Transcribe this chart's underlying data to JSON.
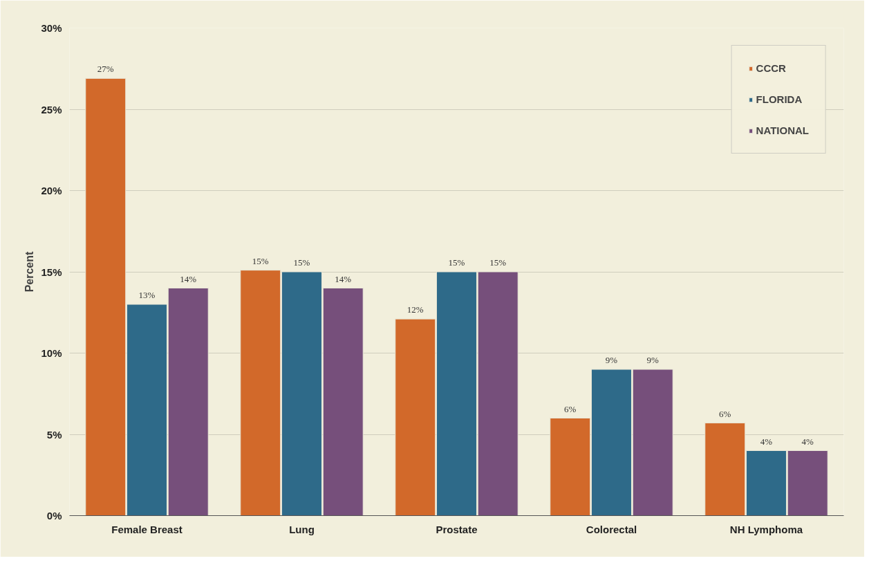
{
  "chart_data": {
    "type": "bar",
    "ylabel": "Percent",
    "categories": [
      "Female Breast",
      "Lung",
      "Prostate",
      "Colorectal",
      "NH Lymphoma"
    ],
    "series": [
      {
        "name": "CCCR",
        "color": "#d2692a",
        "values": [
          26.9,
          15.1,
          12.1,
          6.0,
          5.7
        ],
        "value_labels": [
          "27%",
          "15%",
          "12%",
          "6%",
          "6%"
        ]
      },
      {
        "name": "FLORIDA",
        "color": "#2e6a89",
        "values": [
          13,
          15,
          15,
          9,
          4
        ],
        "value_labels": [
          "13%",
          "15%",
          "15%",
          "9%",
          "4%"
        ]
      },
      {
        "name": "NATIONAL",
        "color": "#764f7b",
        "values": [
          14,
          14,
          15,
          9,
          4
        ],
        "value_labels": [
          "14%",
          "14%",
          "15%",
          "9%",
          "4%"
        ]
      }
    ],
    "ylim": [
      0,
      30
    ],
    "yticks": [
      {
        "value": 0,
        "label": "0%"
      },
      {
        "value": 5,
        "label": "5%"
      },
      {
        "value": 10,
        "label": "10%"
      },
      {
        "value": 15,
        "label": "15%"
      },
      {
        "value": 20,
        "label": "20%"
      },
      {
        "value": 25,
        "label": "25%"
      },
      {
        "value": 30,
        "label": "30%"
      }
    ],
    "grid": "y",
    "legend": "top right"
  }
}
